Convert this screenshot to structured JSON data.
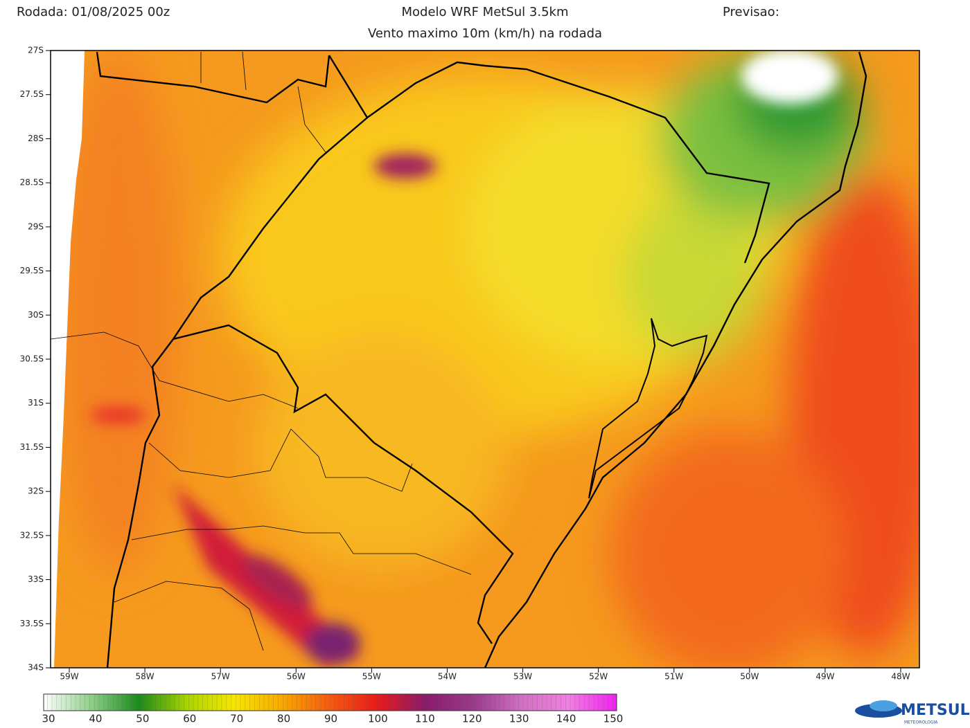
{
  "header": {
    "run": "Rodada: 01/08/2025 00z",
    "model": "Modelo WRF MetSul 3.5km",
    "forecast": "Previsao:",
    "subtitle": "Vento maximo 10m (km/h) na rodada"
  },
  "map": {
    "lat_labels": [
      "27S",
      "27.5S",
      "28S",
      "28.5S",
      "29S",
      "29.5S",
      "30S",
      "30.5S",
      "31S",
      "31.5S",
      "32S",
      "32.5S",
      "33S",
      "33.5S",
      "34S"
    ],
    "lon_labels": [
      "59W",
      "58W",
      "57W",
      "56W",
      "55W",
      "54W",
      "53W",
      "52W",
      "51W",
      "50W",
      "49W",
      "48W"
    ]
  },
  "colorbar": {
    "ticks": [
      30,
      40,
      50,
      60,
      70,
      80,
      90,
      100,
      110,
      120,
      130,
      140,
      150
    ]
  },
  "logo": {
    "name": "METSUL",
    "tagline": "METEOROLOGIA"
  }
}
